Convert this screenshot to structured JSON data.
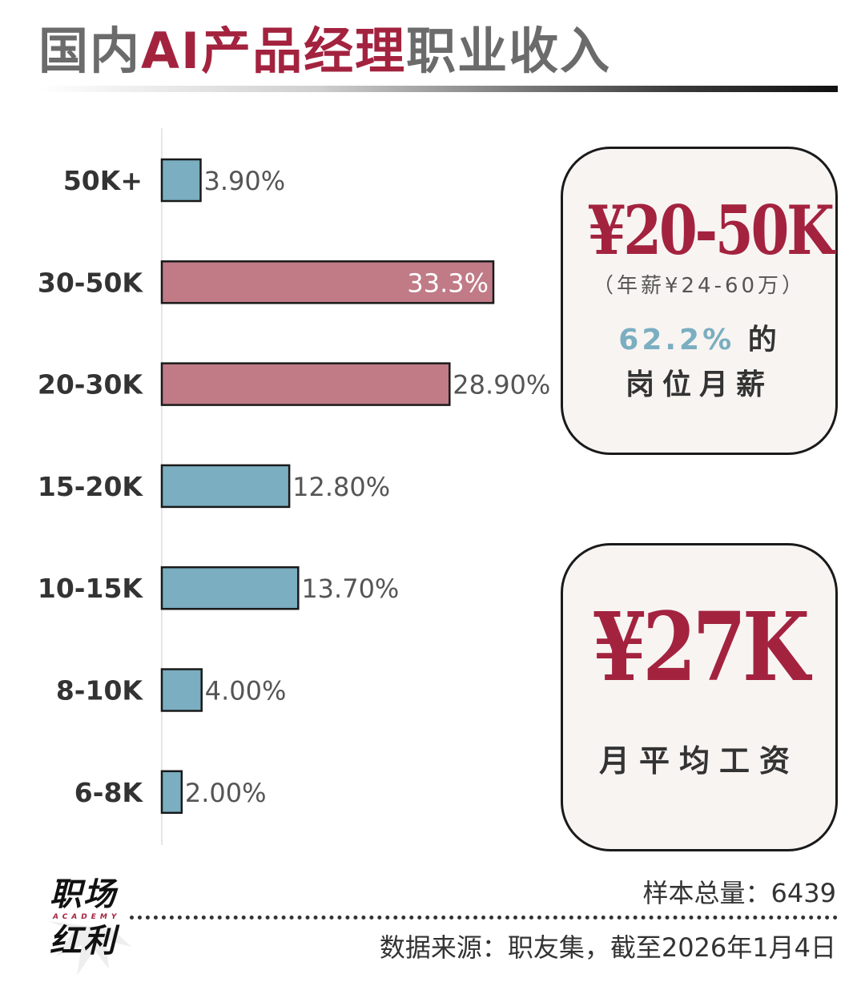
{
  "header": {
    "title_part1": "国内",
    "title_part2": "AI产品经理",
    "title_part3": "职业收入"
  },
  "colors": {
    "highlight_bar": "#c07b87",
    "normal_bar": "#7aaec0",
    "accent": "#a3233f"
  },
  "chart_data": {
    "type": "bar",
    "orientation": "horizontal",
    "categories": [
      "50K+",
      "30-50K",
      "20-30K",
      "15-20K",
      "10-15K",
      "8-10K",
      "6-8K"
    ],
    "values": [
      3.9,
      33.3,
      28.9,
      12.8,
      13.7,
      4.0,
      2.0
    ],
    "value_labels": [
      "3.90%",
      "33.3%",
      "28.90%",
      "12.80%",
      "13.70%",
      "4.00%",
      "2.00%"
    ],
    "highlighted": [
      "30-50K",
      "20-30K"
    ],
    "title": "",
    "xlabel": "",
    "ylabel": "",
    "xlim": [
      0,
      33.3
    ]
  },
  "card_range": {
    "value": "¥20-50K",
    "annual": "（年薪¥24-60万）",
    "share": "62.2%",
    "share_suffix": "的",
    "description": "岗位月薪"
  },
  "card_avg": {
    "value": "¥27K",
    "description": "月平均工资"
  },
  "footer": {
    "logo_line1": "职场",
    "logo_sub": "ACADEMY",
    "logo_line2": "红利",
    "sample": "样本总量：6439",
    "source": "数据来源：职友集，截至2026年1月4日"
  }
}
